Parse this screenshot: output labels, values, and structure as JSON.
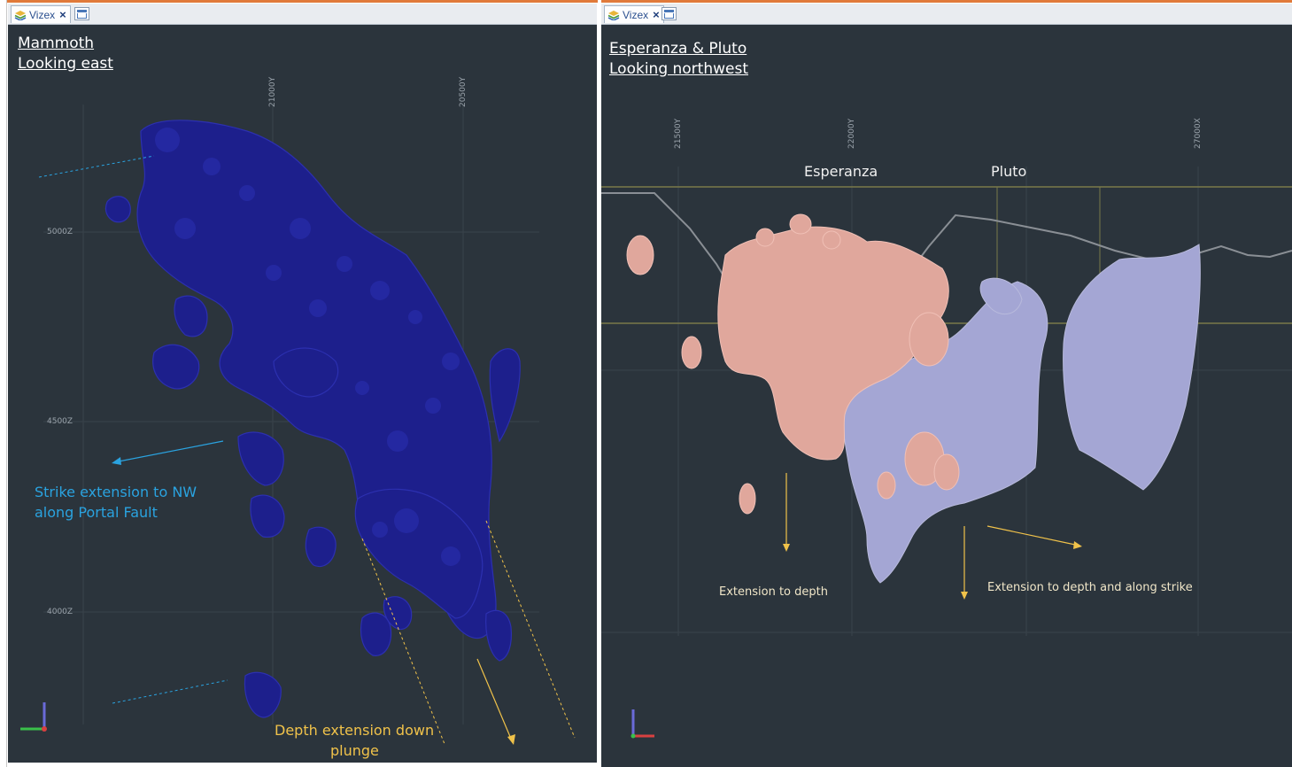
{
  "tabs": {
    "left": {
      "label": "Vizex",
      "close": "×"
    },
    "right": {
      "label": "Vizex",
      "close": "×"
    }
  },
  "left_view": {
    "title_line1": "Mammoth",
    "title_line2": "Looking east",
    "axis_top": [
      "21000Y",
      "20500Y"
    ],
    "axis_side": [
      "5000Z",
      "4500Z",
      "4000Z"
    ],
    "annotation_strike_line1": "Strike extension to NW",
    "annotation_strike_line2": "along Portal Fault",
    "annotation_depth_line1": "Depth  extension down",
    "annotation_depth_line2": "plunge"
  },
  "right_view": {
    "title_line1": "Esperanza & Pluto",
    "title_line2": "Looking northwest",
    "axis_top": [
      "21500Y",
      "22000Y",
      "27000X"
    ],
    "label_esperanza": "Esperanza",
    "label_pluto": "Pluto",
    "annotation_depth": "Extension to depth",
    "annotation_strike": "Extension to depth and along strike"
  },
  "colors": {
    "viewport_bg": "#2b343c",
    "mammoth_body": "#1d1f8c",
    "esperanza_body": "#e0a79c",
    "pluto_body": "#a4a6d4",
    "annotation_blue": "#2aa3e0",
    "annotation_yellow": "#f0c24a",
    "annotation_white": "#f0e6c8"
  }
}
